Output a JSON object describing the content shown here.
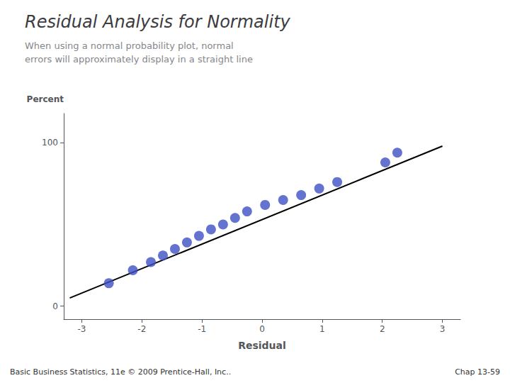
{
  "chart_data": {
    "type": "scatter",
    "title": "Residual Analysis for Normality",
    "subtitle": [
      "When using a normal probability plot, normal",
      "errors will approximately display in a straight line"
    ],
    "xlabel": "Residual",
    "ylabel": "Percent",
    "annotations": [
      "Basic Business Statistics, 11e © 2009 Prentice-Hall, Inc..",
      "Chap 13-59"
    ],
    "xlim": [
      -3.3,
      3.3
    ],
    "xticks": [
      -3,
      -2,
      -1,
      0,
      1,
      2,
      3
    ],
    "ylim": [
      -8,
      118
    ],
    "yticks": [
      0,
      100
    ],
    "grid": false,
    "series": [
      {
        "type": "scatter",
        "color": "#3d4fc4",
        "x": [
          -2.55,
          -2.15,
          -1.85,
          -1.65,
          -1.45,
          -1.25,
          -1.05,
          -0.85,
          -0.65,
          -0.45,
          -0.25,
          0.05,
          0.35,
          0.65,
          0.95,
          1.25,
          2.05,
          2.25
        ],
        "values": [
          14,
          22,
          27,
          31,
          35,
          39,
          43,
          47,
          50,
          54,
          58,
          62,
          65,
          68,
          72,
          76,
          88,
          94
        ]
      },
      {
        "type": "line",
        "color": "#000000",
        "x": [
          -3.2,
          3.0
        ],
        "values": [
          5,
          98
        ]
      }
    ]
  }
}
